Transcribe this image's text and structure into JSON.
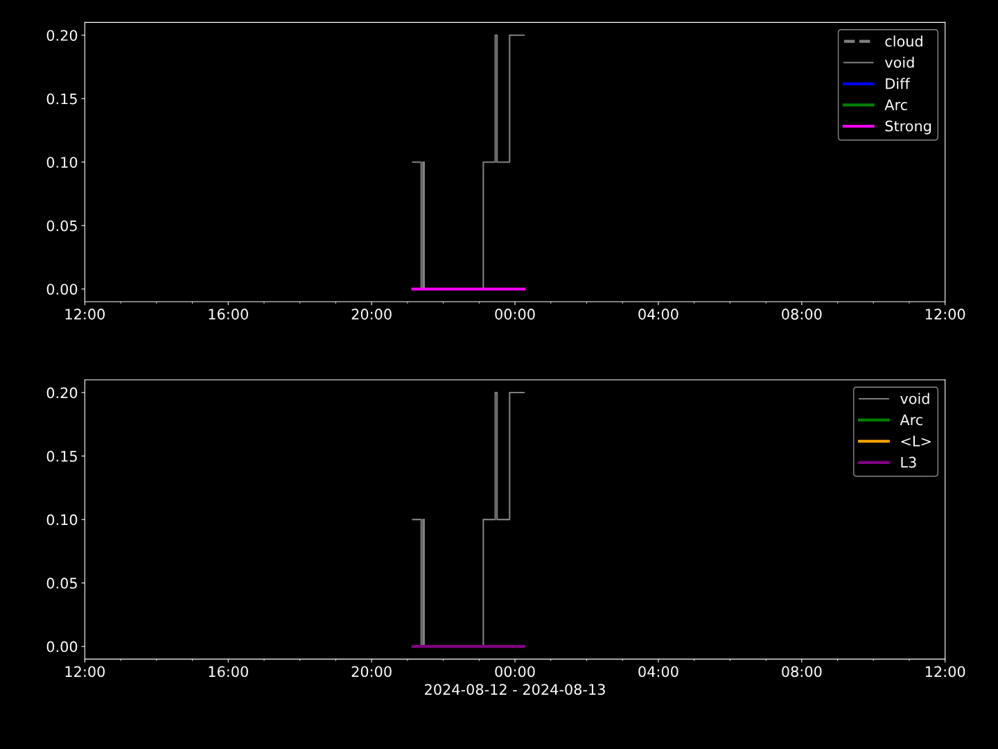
{
  "chart_data": [
    {
      "type": "step",
      "xlim": [
        "2024-08-12T12:00",
        "2024-08-13T12:00"
      ],
      "xticks": [
        {
          "value": "2024-08-12T12:00",
          "label": "12:00"
        },
        {
          "value": "2024-08-12T16:00",
          "label": "16:00"
        },
        {
          "value": "2024-08-12T20:00",
          "label": "20:00"
        },
        {
          "value": "2024-08-13T00:00",
          "label": "00:00"
        },
        {
          "value": "2024-08-13T04:00",
          "label": "04:00"
        },
        {
          "value": "2024-08-13T08:00",
          "label": "08:00"
        },
        {
          "value": "2024-08-13T12:00",
          "label": "12:00"
        }
      ],
      "ylim": [
        -0.01,
        0.21
      ],
      "yticks": [
        {
          "value": 0,
          "label": "0.00"
        },
        {
          "value": 0.05,
          "label": "0.05"
        },
        {
          "value": 0.1,
          "label": "0.10"
        },
        {
          "value": 0.15,
          "label": "0.15"
        },
        {
          "value": 0.2,
          "label": "0.20"
        }
      ],
      "legend": "top right",
      "grid": false,
      "series": [
        {
          "name": "cloud",
          "type": "line",
          "line_style": "dashed",
          "color": "#808080"
        },
        {
          "name": "void",
          "color": "#808080",
          "x": [
            "2024-08-12T21:09",
            "2024-08-12T21:23",
            "2024-08-12T21:26",
            "2024-08-12T21:28",
            "2024-08-12T23:07",
            "2024-08-12T23:27",
            "2024-08-12T23:30",
            "2024-08-12T23:51",
            "2024-08-13T00:15"
          ],
          "values": [
            0.1,
            0,
            0.1,
            0,
            0.1,
            0.2,
            0.1,
            0.2,
            0.2
          ]
        },
        {
          "name": "Diff",
          "type": "line",
          "color": "#0000ff"
        },
        {
          "name": "Arc",
          "type": "line",
          "color": "#008000"
        },
        {
          "name": "Strong",
          "type": "line",
          "color": "#ff00ff",
          "x": [
            "2024-08-12T21:09",
            "2024-08-13T00:15"
          ],
          "values": [
            0,
            0
          ]
        }
      ]
    },
    {
      "type": "step",
      "xlabel": "2024-08-12 - 2024-08-13",
      "xlim": [
        "2024-08-12T12:00",
        "2024-08-13T12:00"
      ],
      "xticks": [
        {
          "value": "2024-08-12T12:00",
          "label": "12:00"
        },
        {
          "value": "2024-08-12T16:00",
          "label": "16:00"
        },
        {
          "value": "2024-08-12T20:00",
          "label": "20:00"
        },
        {
          "value": "2024-08-13T00:00",
          "label": "00:00"
        },
        {
          "value": "2024-08-13T04:00",
          "label": "04:00"
        },
        {
          "value": "2024-08-13T08:00",
          "label": "08:00"
        },
        {
          "value": "2024-08-13T12:00",
          "label": "12:00"
        }
      ],
      "ylim": [
        -0.01,
        0.21
      ],
      "yticks": [
        {
          "value": 0,
          "label": "0.00"
        },
        {
          "value": 0.05,
          "label": "0.05"
        },
        {
          "value": 0.1,
          "label": "0.10"
        },
        {
          "value": 0.15,
          "label": "0.15"
        },
        {
          "value": 0.2,
          "label": "0.20"
        }
      ],
      "legend": "top right",
      "grid": false,
      "series": [
        {
          "name": "void",
          "color": "#808080",
          "x": [
            "2024-08-12T21:09",
            "2024-08-12T21:23",
            "2024-08-12T21:26",
            "2024-08-12T21:28",
            "2024-08-12T23:07",
            "2024-08-12T23:27",
            "2024-08-12T23:30",
            "2024-08-12T23:51",
            "2024-08-13T00:15"
          ],
          "values": [
            0.1,
            0,
            0.1,
            0,
            0.1,
            0.2,
            0.1,
            0.2,
            0.2
          ]
        },
        {
          "name": "Arc",
          "type": "line",
          "color": "#008000"
        },
        {
          "name": "<L>",
          "type": "line",
          "color": "#ffa500"
        },
        {
          "name": "L3",
          "type": "line",
          "color": "#800080",
          "x": [
            "2024-08-12T21:09",
            "2024-08-13T00:15"
          ],
          "values": [
            0,
            0
          ]
        }
      ]
    }
  ]
}
